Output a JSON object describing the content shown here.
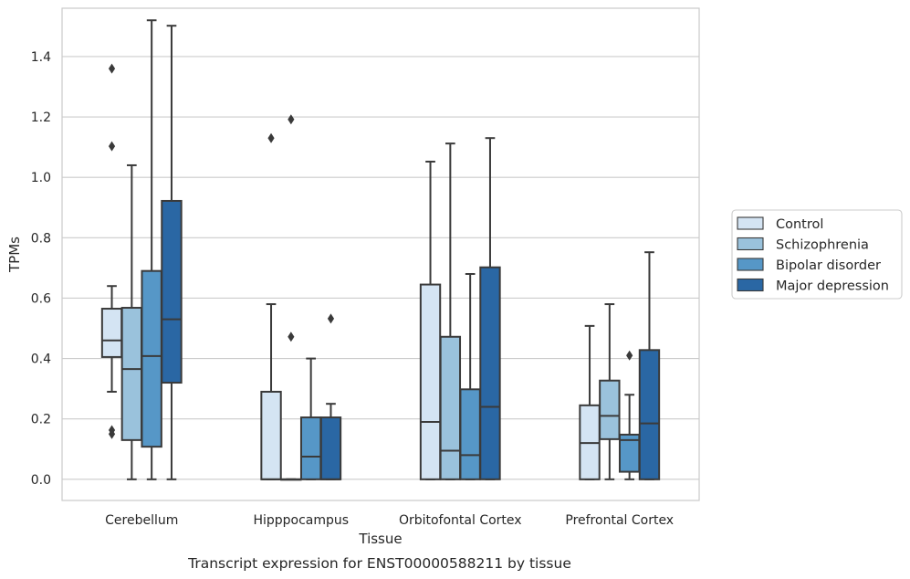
{
  "caption": "Transcript expression for ENST00000588211 by tissue",
  "chart_data": {
    "type": "box",
    "xlabel": "Tissue",
    "ylabel": "TPMs",
    "ylim": [
      -0.07,
      1.56
    ],
    "yticks": [
      0.0,
      0.2,
      0.4,
      0.6,
      0.8,
      1.0,
      1.2,
      1.4
    ],
    "ytick_labels": [
      "0.0",
      "0.2",
      "0.4",
      "0.6",
      "0.8",
      "1.0",
      "1.2",
      "1.4"
    ],
    "grid": "horizontal",
    "legend_position": "right",
    "categories": [
      "Cerebellum",
      "Hipppocampus",
      "Orbitofontal Cortex",
      "Prefrontal Cortex"
    ],
    "series": [
      {
        "name": "Control",
        "color": "#d4e4f3",
        "boxes": [
          {
            "whislo": 0.29,
            "q1": 0.405,
            "med": 0.46,
            "q3": 0.565,
            "whishi": 0.64,
            "fliers": [
              0.15,
              0.163,
              1.103,
              1.36
            ]
          },
          {
            "whislo": 0.0,
            "q1": 0.0,
            "med": 0.0,
            "q3": 0.29,
            "whishi": 0.58,
            "fliers": [
              1.13
            ]
          },
          {
            "whislo": 0.0,
            "q1": 0.0,
            "med": 0.19,
            "q3": 0.645,
            "whishi": 1.052,
            "fliers": []
          },
          {
            "whislo": 0.0,
            "q1": 0.0,
            "med": 0.12,
            "q3": 0.245,
            "whishi": 0.508,
            "fliers": []
          }
        ]
      },
      {
        "name": "Schizophrenia",
        "color": "#9ac2dc",
        "boxes": [
          {
            "whislo": 0.0,
            "q1": 0.13,
            "med": 0.365,
            "q3": 0.568,
            "whishi": 1.04,
            "fliers": []
          },
          {
            "whislo": 0.0,
            "q1": 0.0,
            "med": 0.0,
            "q3": 0.0,
            "whishi": 0.0,
            "fliers": [
              0.472,
              1.192
            ]
          },
          {
            "whislo": 0.0,
            "q1": 0.0,
            "med": 0.095,
            "q3": 0.472,
            "whishi": 1.112,
            "fliers": []
          },
          {
            "whislo": 0.0,
            "q1": 0.133,
            "med": 0.21,
            "q3": 0.327,
            "whishi": 0.58,
            "fliers": []
          }
        ]
      },
      {
        "name": "Bipolar disorder",
        "color": "#5697c7",
        "boxes": [
          {
            "whislo": 0.0,
            "q1": 0.108,
            "med": 0.408,
            "q3": 0.69,
            "whishi": 1.52,
            "fliers": []
          },
          {
            "whislo": 0.0,
            "q1": 0.0,
            "med": 0.075,
            "q3": 0.205,
            "whishi": 0.4,
            "fliers": []
          },
          {
            "whislo": 0.0,
            "q1": 0.0,
            "med": 0.08,
            "q3": 0.298,
            "whishi": 0.68,
            "fliers": []
          },
          {
            "whislo": 0.0,
            "q1": 0.025,
            "med": 0.13,
            "q3": 0.148,
            "whishi": 0.28,
            "fliers": [
              0.41
            ]
          }
        ]
      },
      {
        "name": "Major depression",
        "color": "#2a67a4",
        "boxes": [
          {
            "whislo": 0.0,
            "q1": 0.32,
            "med": 0.53,
            "q3": 0.922,
            "whishi": 1.502,
            "fliers": []
          },
          {
            "whislo": 0.0,
            "q1": 0.0,
            "med": 0.0,
            "q3": 0.205,
            "whishi": 0.25,
            "fliers": [
              0.532
            ]
          },
          {
            "whislo": 0.0,
            "q1": 0.0,
            "med": 0.24,
            "q3": 0.702,
            "whishi": 1.13,
            "fliers": []
          },
          {
            "whislo": 0.0,
            "q1": 0.0,
            "med": 0.185,
            "q3": 0.428,
            "whishi": 0.752,
            "fliers": []
          }
        ]
      }
    ]
  }
}
